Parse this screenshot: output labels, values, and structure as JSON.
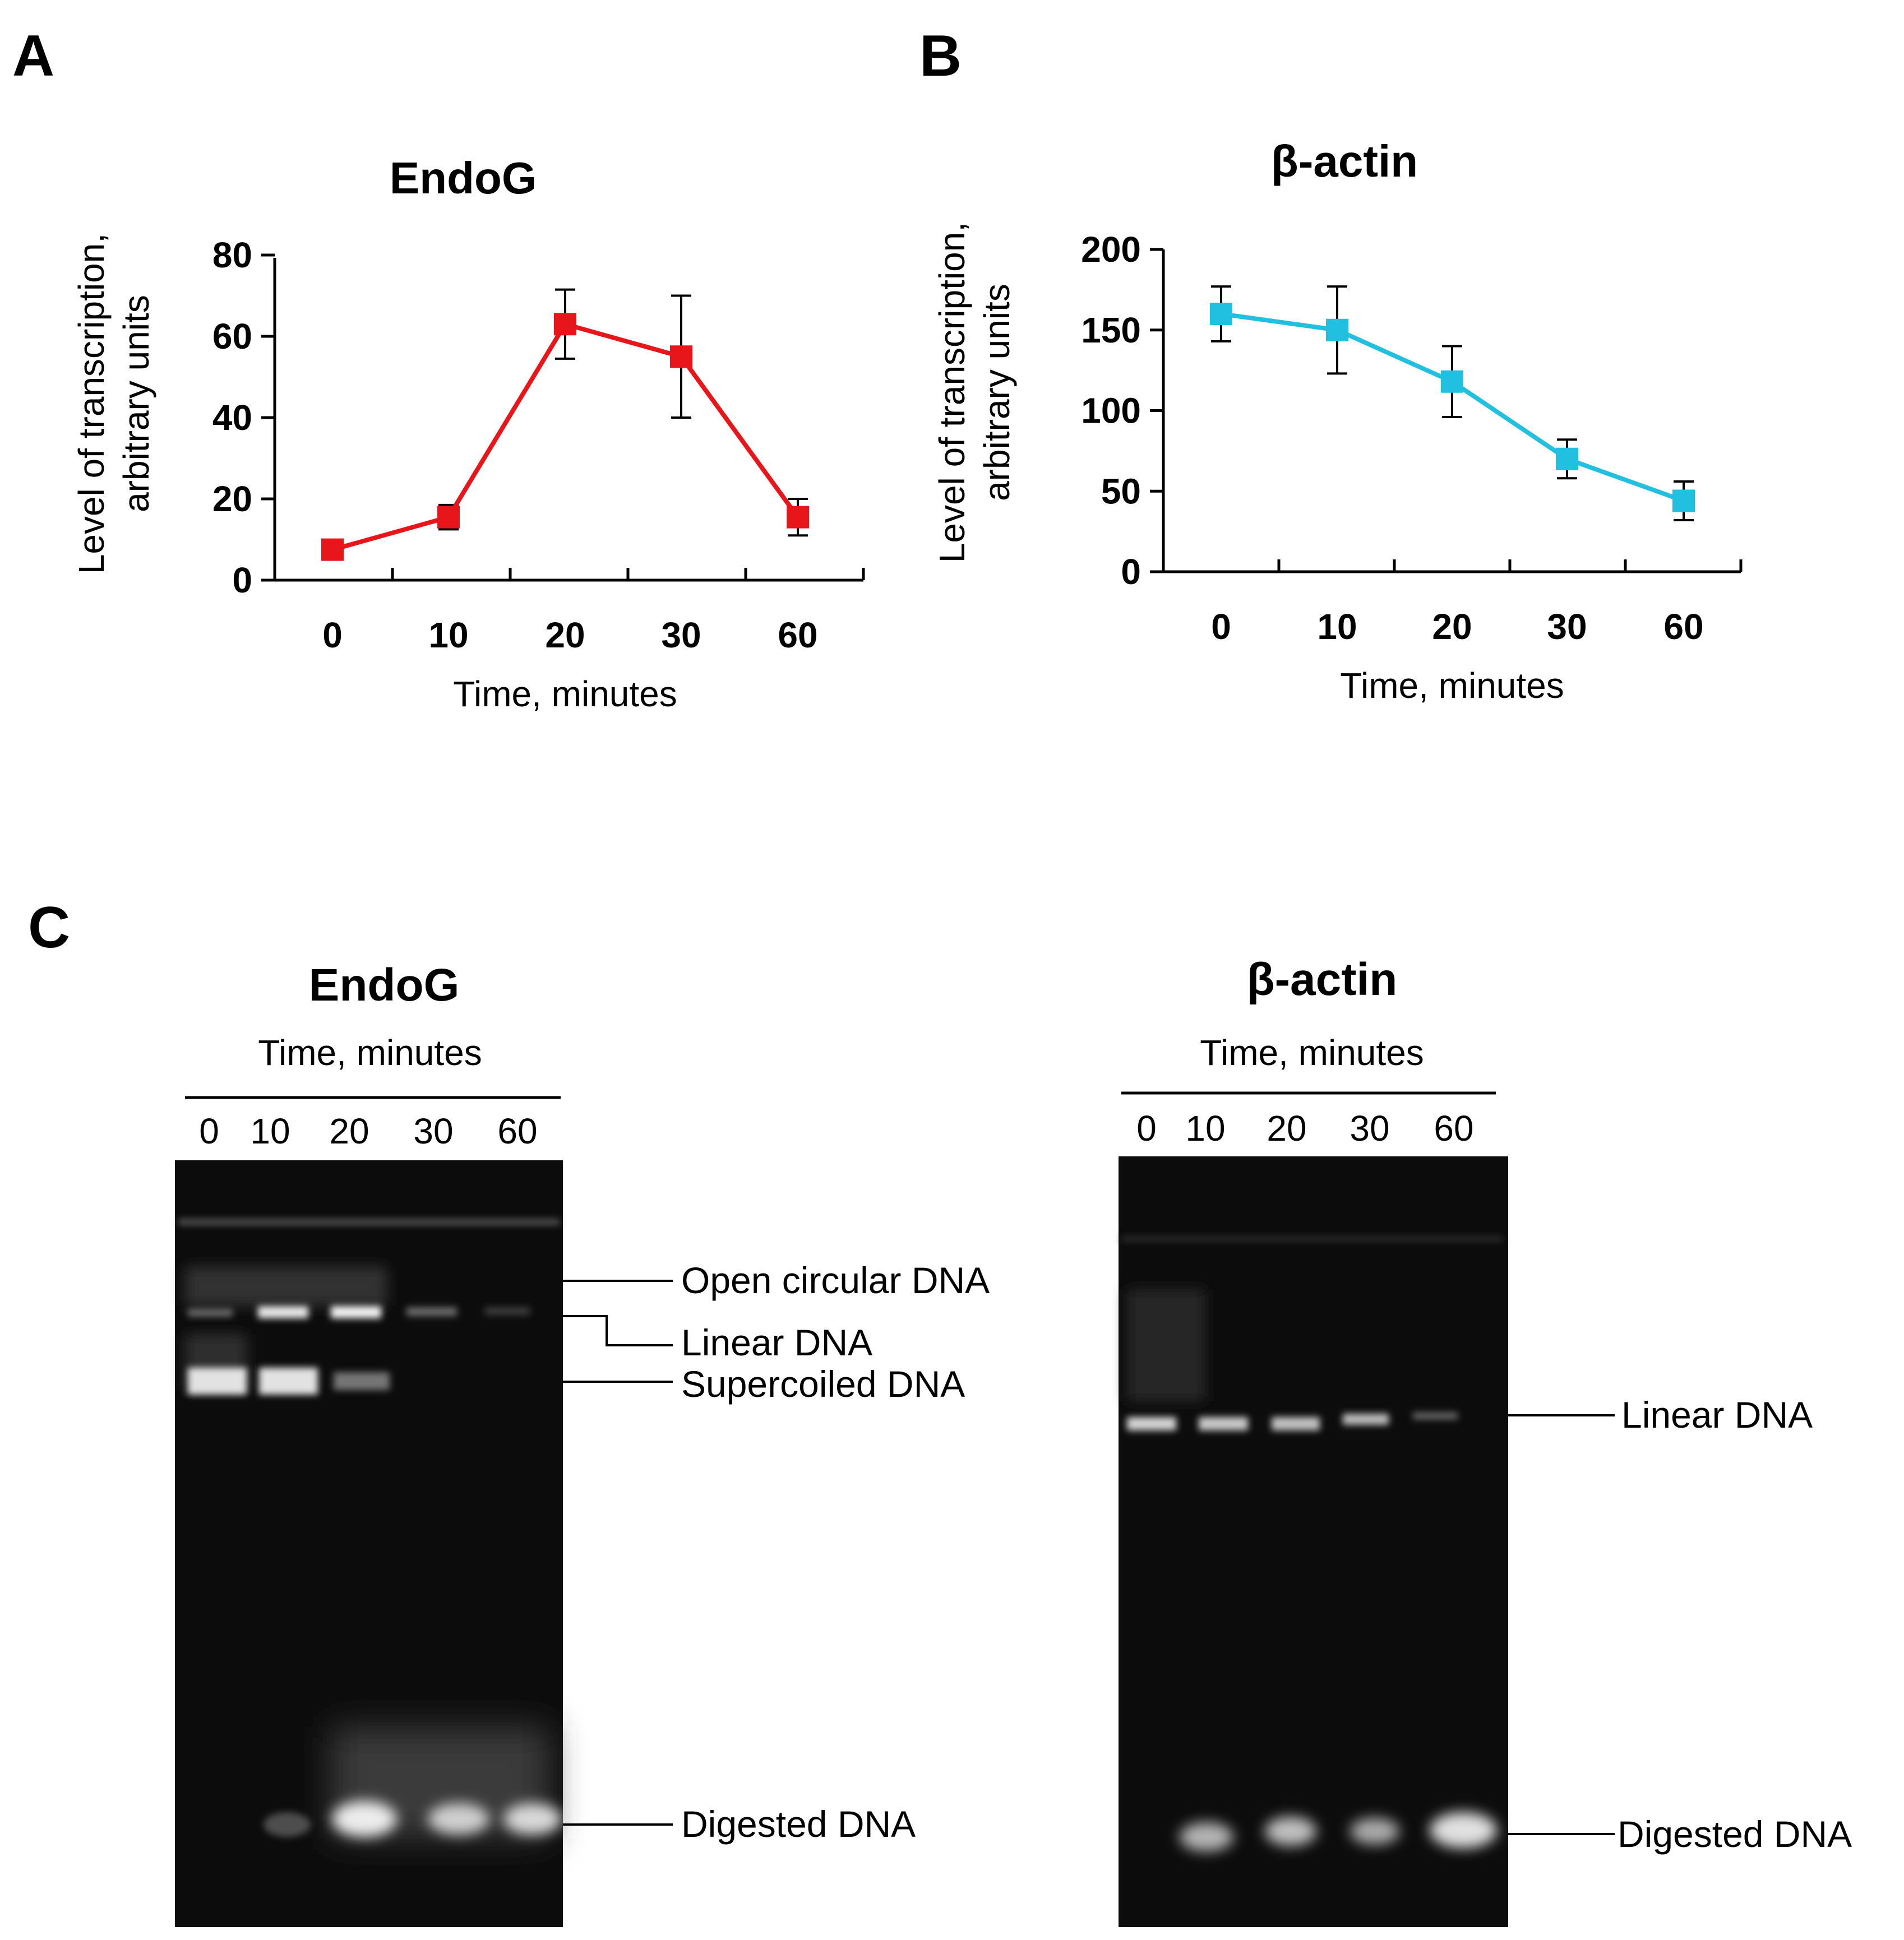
{
  "panels": {
    "a": "A",
    "b": "B",
    "c": "C"
  },
  "chart_data": [
    {
      "type": "line",
      "title": "EndoG",
      "xlabel": "Time, minutes",
      "ylabel_lines": [
        "Level of transcription,",
        "arbitrary units"
      ],
      "categories": [
        "0",
        "10",
        "20",
        "30",
        "60"
      ],
      "yticks": [
        "0",
        "20",
        "40",
        "60",
        "80"
      ],
      "ylim": [
        0,
        80
      ],
      "series": [
        {
          "values": [
            7.5,
            15.5,
            63,
            55,
            15.5
          ],
          "errors": [
            1,
            3,
            8.5,
            15,
            4.5
          ],
          "color": "#e8161b"
        }
      ]
    },
    {
      "type": "line",
      "title": "β-actin",
      "xlabel": "Time, minutes",
      "ylabel_lines": [
        "Level of transcription,",
        "arbitrary units"
      ],
      "categories": [
        "0",
        "10",
        "20",
        "30",
        "60"
      ],
      "yticks": [
        "0",
        "50",
        "100",
        "150",
        "200"
      ],
      "ylim": [
        0,
        200
      ],
      "series": [
        {
          "values": [
            160,
            150,
            118,
            70,
            44
          ],
          "errors": [
            17,
            27,
            22,
            12,
            12
          ],
          "color": "#22c0e0"
        }
      ]
    }
  ],
  "gels": {
    "endog": {
      "title": "EndoG",
      "subtitle": "Time, minutes",
      "lanes": [
        "0",
        "10",
        "20",
        "30",
        "60"
      ],
      "bands": {
        "open": "Open circular DNA",
        "linear": "Linear DNA",
        "supercoiled": "Supercoiled DNA",
        "digested": "Digested DNA"
      }
    },
    "actin": {
      "title": "β-actin",
      "subtitle": "Time, minutes",
      "lanes": [
        "0",
        "10",
        "20",
        "30",
        "60"
      ],
      "bands": {
        "linear": "Linear DNA",
        "digested": "Digested DNA"
      }
    }
  }
}
